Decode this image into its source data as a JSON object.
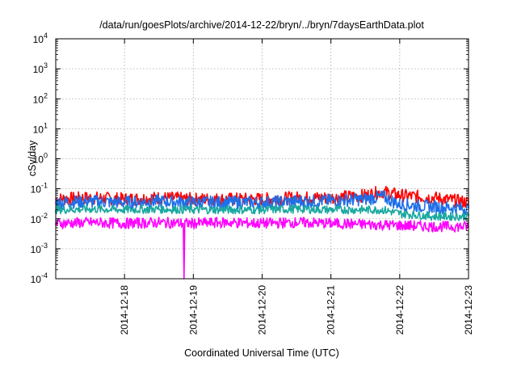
{
  "chart_data": {
    "type": "line",
    "title": "/data/run/goesPlots/archive/2014-12-22/bryn/../bryn/7daysEarthData.plot",
    "xlabel": "Coordinated Universal Time (UTC)",
    "ylabel": "cSv/day",
    "y_scale": "log",
    "ylim": [
      0.0001,
      10000
    ],
    "xlim": [
      "2014-12-17",
      "2014-12-23"
    ],
    "grid": true,
    "legend": "none",
    "x_ticks": [
      "2014-12-18",
      "2014-12-19",
      "2014-12-20",
      "2014-12-21",
      "2014-12-22",
      "2014-12-23"
    ],
    "y_ticks": [
      {
        "value": 0.0001,
        "base": "10",
        "exp": "-4"
      },
      {
        "value": 0.001,
        "base": "10",
        "exp": "-3"
      },
      {
        "value": 0.01,
        "base": "10",
        "exp": "-2"
      },
      {
        "value": 0.1,
        "base": "10",
        "exp": "-1"
      },
      {
        "value": 1,
        "base": "10",
        "exp": "0"
      },
      {
        "value": 10,
        "base": "10",
        "exp": "1"
      },
      {
        "value": 100,
        "base": "10",
        "exp": "2"
      },
      {
        "value": 1000,
        "base": "10",
        "exp": "3"
      },
      {
        "value": 10000,
        "base": "10",
        "exp": "4"
      }
    ],
    "series": [
      {
        "color": "#ff0000",
        "x": [
          "2014-12-17 00:00",
          "2014-12-17 12:00",
          "2014-12-18 00:00",
          "2014-12-18 12:00",
          "2014-12-19 00:00",
          "2014-12-19 12:00",
          "2014-12-20 00:00",
          "2014-12-20 12:00",
          "2014-12-21 00:00",
          "2014-12-21 12:00",
          "2014-12-21 18:00",
          "2014-12-22 00:00",
          "2014-12-22 12:00",
          "2014-12-23 00:00"
        ],
        "y": [
          0.045,
          0.05,
          0.045,
          0.05,
          0.045,
          0.045,
          0.045,
          0.05,
          0.05,
          0.06,
          0.08,
          0.06,
          0.05,
          0.035
        ]
      },
      {
        "color": "#1e6fe8",
        "x": [
          "2014-12-17 00:00",
          "2014-12-17 12:00",
          "2014-12-18 00:00",
          "2014-12-18 12:00",
          "2014-12-19 00:00",
          "2014-12-19 12:00",
          "2014-12-20 00:00",
          "2014-12-20 12:00",
          "2014-12-21 00:00",
          "2014-12-21 12:00",
          "2014-12-21 18:00",
          "2014-12-22 00:00",
          "2014-12-22 12:00",
          "2014-12-23 00:00"
        ],
        "y": [
          0.035,
          0.038,
          0.035,
          0.038,
          0.035,
          0.035,
          0.035,
          0.038,
          0.04,
          0.045,
          0.055,
          0.03,
          0.025,
          0.022
        ]
      },
      {
        "color": "#1aa8a0",
        "x": [
          "2014-12-17 00:00",
          "2014-12-17 12:00",
          "2014-12-18 00:00",
          "2014-12-18 12:00",
          "2014-12-19 00:00",
          "2014-12-19 12:00",
          "2014-12-20 00:00",
          "2014-12-20 12:00",
          "2014-12-21 00:00",
          "2014-12-21 12:00",
          "2014-12-21 18:00",
          "2014-12-22 00:00",
          "2014-12-22 12:00",
          "2014-12-23 00:00"
        ],
        "y": [
          0.02,
          0.021,
          0.02,
          0.021,
          0.02,
          0.02,
          0.02,
          0.021,
          0.02,
          0.02,
          0.02,
          0.015,
          0.012,
          0.012
        ]
      },
      {
        "color": "#ff00ff",
        "x": [
          "2014-12-17 00:00",
          "2014-12-17 12:00",
          "2014-12-18 00:00",
          "2014-12-18 12:00",
          "2014-12-18 20:30",
          "2014-12-18 20:45",
          "2014-12-18 21:00",
          "2014-12-19 00:00",
          "2014-12-19 12:00",
          "2014-12-20 00:00",
          "2014-12-20 12:00",
          "2014-12-21 00:00",
          "2014-12-21 12:00",
          "2014-12-22 00:00",
          "2014-12-22 12:00",
          "2014-12-23 00:00"
        ],
        "y": [
          0.007,
          0.0075,
          0.007,
          0.0075,
          0.007,
          0.0001,
          0.007,
          0.007,
          0.0075,
          0.007,
          0.0075,
          0.007,
          0.0065,
          0.006,
          0.0055,
          0.0055
        ]
      }
    ]
  }
}
